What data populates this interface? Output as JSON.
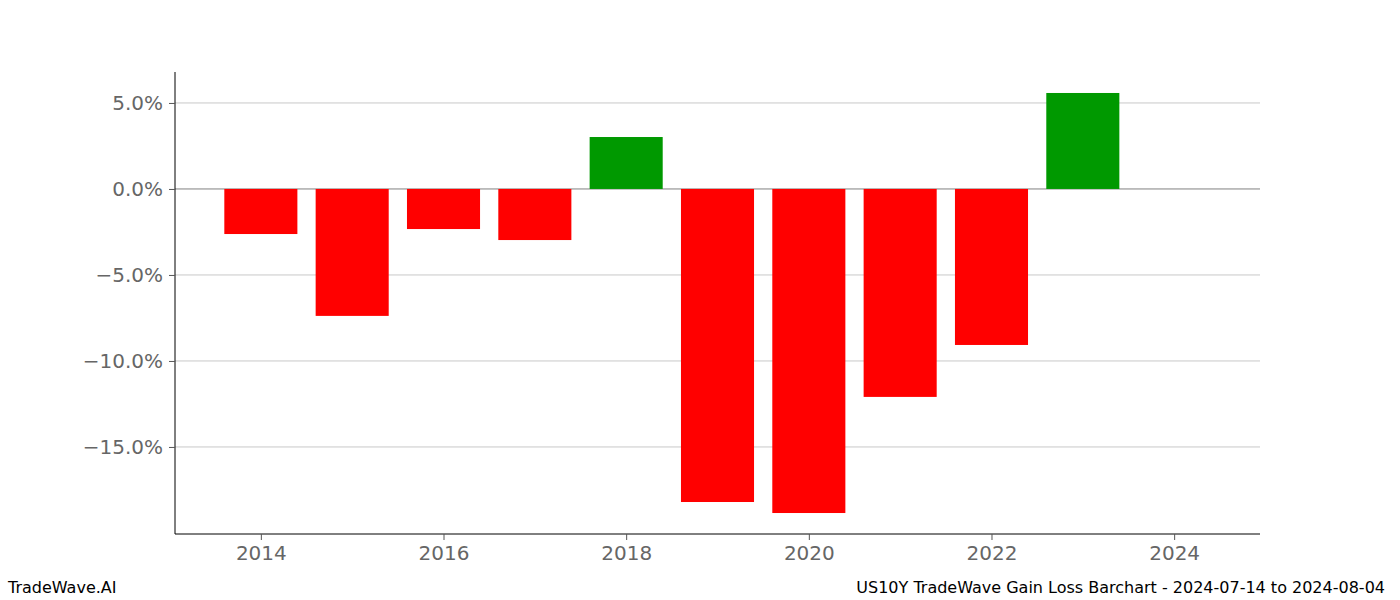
{
  "chart_data": {
    "type": "bar",
    "title": "US10Y TradeWave Gain Loss Barchart - 2024-07-14 to 2024-08-04",
    "source": "TradeWave.AI",
    "x": [
      2014,
      2015,
      2016,
      2017,
      2018,
      2019,
      2020,
      2021,
      2022,
      2023,
      2024
    ],
    "values": [
      -2.62,
      -7.38,
      -2.33,
      -2.97,
      3.02,
      -18.2,
      -18.84,
      -12.09,
      -9.07,
      5.58,
      0
    ],
    "colors": [
      "#ff0000",
      "#ff0000",
      "#ff0000",
      "#ff0000",
      "#009900",
      "#ff0000",
      "#ff0000",
      "#ff0000",
      "#ff0000",
      "#009900",
      "#ff0000"
    ],
    "xlim": [
      2013.06,
      2024.94
    ],
    "xticks": [
      2014,
      2016,
      2018,
      2020,
      2022,
      2024
    ],
    "ylim": [
      -20.06,
      6.8
    ],
    "yticks": [
      {
        "value": -15,
        "label": "−15.0%"
      },
      {
        "value": -10,
        "label": "−10.0%"
      },
      {
        "value": -5,
        "label": "−5.0%"
      },
      {
        "value": 0,
        "label": "0.0%"
      },
      {
        "value": 5,
        "label": "5.0%"
      }
    ],
    "grid": true
  }
}
